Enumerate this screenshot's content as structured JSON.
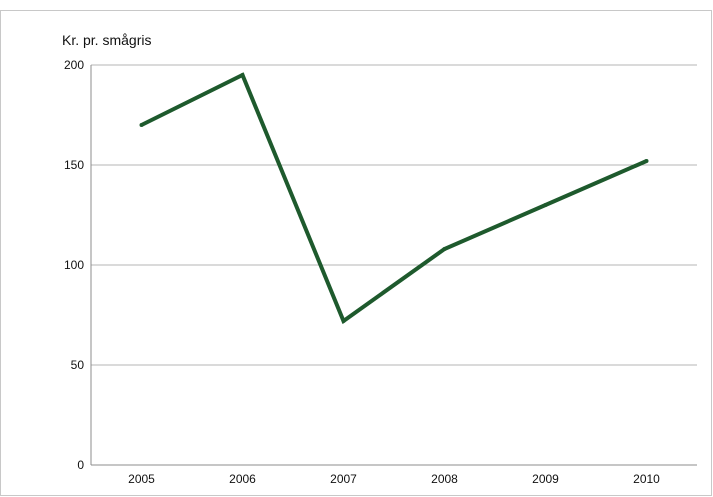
{
  "chart_data": {
    "type": "line",
    "ylabel": "Kr. pr. smågris",
    "xlabel": "",
    "x": [
      "2005",
      "2006",
      "2007",
      "2008",
      "2009",
      "2010"
    ],
    "series": [
      {
        "values": [
          170,
          195,
          72,
          108,
          130,
          152
        ]
      }
    ],
    "ylim": [
      0,
      200
    ],
    "yticks": [
      0,
      50,
      100,
      150,
      200
    ],
    "grid": "horizontal",
    "line_color": "#1e5a2d",
    "grid_color": "#b4b4b4"
  }
}
